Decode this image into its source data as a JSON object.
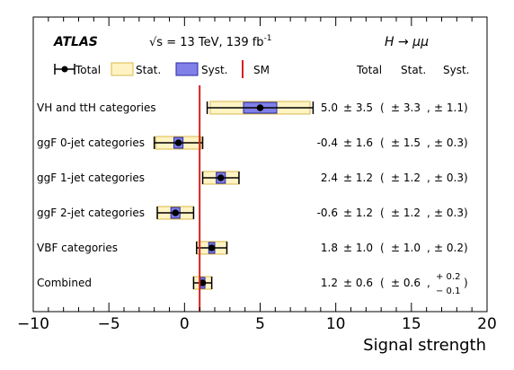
{
  "chart_data": {
    "type": "forest",
    "experiment": "ATLAS",
    "energy_text": "√s = 13 TeV,  139 fb",
    "energy_sup": "-1",
    "process": "H → μμ",
    "xlabel": "Signal strength",
    "xlim": [
      -10,
      20
    ],
    "xticks": [
      "−10",
      "−5",
      "0",
      "5",
      "10",
      "15",
      "20"
    ],
    "xtick_values": [
      -10,
      -5,
      0,
      5,
      10,
      15,
      20
    ],
    "sm_value": 1,
    "legend": {
      "total": "Total",
      "stat": "Stat.",
      "syst": "Syst.",
      "sm": "SM"
    },
    "columns": {
      "total": "Total",
      "stat": "Stat.",
      "syst": "Syst."
    },
    "colors": {
      "stat_fill": "#fff3c4",
      "stat_edge": "#d8b84a",
      "syst_fill": "#8080e8",
      "syst_edge": "#2a2aa0",
      "sm_line": "#d62020"
    },
    "rows": [
      {
        "label": "VH and ttH categories",
        "value": 5.0,
        "total": 3.5,
        "stat": 3.3,
        "syst": 1.1,
        "text": {
          "val": "5.0",
          "tot": "± 3.5",
          "stat": "± 3.3",
          "syst": "± 1.1"
        }
      },
      {
        "label": "ggF 0-jet categories",
        "value": -0.4,
        "total": 1.6,
        "stat": 1.5,
        "syst": 0.3,
        "text": {
          "val": "-0.4",
          "tot": "± 1.6",
          "stat": "± 1.5",
          "syst": "± 0.3"
        }
      },
      {
        "label": "ggF 1-jet categories",
        "value": 2.4,
        "total": 1.2,
        "stat": 1.2,
        "syst": 0.3,
        "text": {
          "val": "2.4",
          "tot": "± 1.2",
          "stat": "± 1.2",
          "syst": "± 0.3"
        }
      },
      {
        "label": "ggF 2-jet categories",
        "value": -0.6,
        "total": 1.2,
        "stat": 1.2,
        "syst": 0.3,
        "text": {
          "val": "-0.6",
          "tot": "± 1.2",
          "stat": "± 1.2",
          "syst": "± 0.3"
        }
      },
      {
        "label": "VBF categories",
        "value": 1.8,
        "total": 1.0,
        "stat": 1.0,
        "syst": 0.2,
        "text": {
          "val": "1.8",
          "tot": "± 1.0",
          "stat": "± 1.0",
          "syst": "± 0.2"
        }
      },
      {
        "label": "Combined",
        "value": 1.2,
        "total": 0.6,
        "stat": 0.6,
        "syst": 0.15,
        "text": {
          "val": "1.2",
          "tot": "± 0.6",
          "stat": "± 0.6",
          "syst_up": "+ 0.2",
          "syst_down": "− 0.1"
        }
      }
    ]
  }
}
